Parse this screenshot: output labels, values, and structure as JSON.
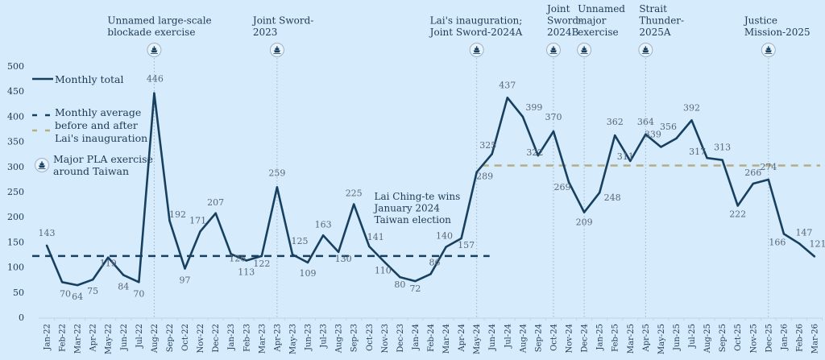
{
  "chart_data": {
    "type": "line",
    "title": "",
    "xlabel": "",
    "ylabel": "",
    "ylim": [
      0,
      500
    ],
    "yticks": [
      0,
      50,
      100,
      150,
      200,
      250,
      300,
      350,
      400,
      450,
      500
    ],
    "grid": false,
    "legend_position": "top-left",
    "colors": {
      "background": "#d6ebfb",
      "line": "#173f5f",
      "avg_before": "#173f5f",
      "avg_after": "#b5ad85",
      "label": "#5a6878",
      "text": "#1f3a55",
      "exercise_line": "#9fb3c8"
    },
    "categories": [
      "Jan-22",
      "Feb-22",
      "Mar-22",
      "Apr-22",
      "May-22",
      "Jun-22",
      "Jul-22",
      "Aug-22",
      "Sep-22",
      "Oct-22",
      "Nov-22",
      "Dec-22",
      "Jan-23",
      "Feb-23",
      "Mar-23",
      "Apr-23",
      "May-23",
      "Jun-23",
      "Jul-23",
      "Aug-23",
      "Sep-23",
      "Oct-23",
      "Nov-23",
      "Dec-23",
      "Jan-24",
      "Feb-24",
      "Mar-24",
      "Apr-24",
      "May-24",
      "Jun-24",
      "Jul-24",
      "Aug-24",
      "Sep-24",
      "Oct-24",
      "Nov-24",
      "Dec-24",
      "Jan-25",
      "Feb-25",
      "Mar-25",
      "Apr-25",
      "May-25",
      "Jun-25",
      "Jul-25",
      "Aug-25",
      "Sep-25",
      "Oct-25",
      "Nov-25",
      "Dec-25",
      "Jan-26",
      "Feb-26",
      "Mar-26"
    ],
    "series": [
      {
        "name": "Monthly total",
        "values": [
          143,
          70,
          64,
          75,
          119,
          84,
          70,
          446,
          192,
          97,
          171,
          207,
          126,
          113,
          122,
          259,
          125,
          109,
          163,
          130,
          225,
          141,
          110,
          80,
          72,
          86,
          140,
          157,
          289,
          325,
          437,
          399,
          322,
          370,
          269,
          209,
          248,
          362,
          311,
          364,
          339,
          356,
          392,
          317,
          313,
          222,
          266,
          274,
          166,
          147,
          121
        ],
        "labels": [
          "143",
          "70",
          "64",
          "75",
          "119",
          "84",
          "70",
          "446",
          "192",
          "97",
          "171",
          "207",
          "126",
          "113",
          "122",
          "259",
          "125",
          "109",
          "163",
          "130",
          "225",
          "141",
          "110",
          "80",
          "72",
          "86",
          "140",
          "157",
          "289",
          "325",
          "437",
          "399",
          "322",
          "370",
          "269",
          "209",
          "248",
          "362",
          "311",
          "364",
          "339",
          "356",
          "392",
          "317",
          "313",
          "222",
          "266",
          "274",
          "166",
          "147",
          "121"
        ]
      }
    ],
    "averages": [
      {
        "name": "Monthly average before Lai's inauguration",
        "value": 122,
        "from": "Jan-22",
        "to": "May-24"
      },
      {
        "name": "Monthly average after Lai's inauguration",
        "value": 302,
        "from": "May-24",
        "to": "Mar-26"
      }
    ],
    "exercises": [
      {
        "month": "Aug-22",
        "label": [
          "Unnamed large-scale",
          "blockade exercise"
        ]
      },
      {
        "month": "Apr-23",
        "label": [
          "Joint Sword-",
          "2023"
        ]
      },
      {
        "month": "May-24",
        "label": [
          "Lai's inauguration;",
          "Joint Sword-2024A"
        ]
      },
      {
        "month": "Oct-24",
        "label": [
          "Joint",
          "Sword-",
          "2024B"
        ]
      },
      {
        "month": "Dec-24",
        "label": [
          "Unnamed",
          "major",
          "exercise"
        ]
      },
      {
        "month": "Apr-25",
        "label": [
          "Strait",
          "Thunder-",
          "2025A"
        ]
      },
      {
        "month": "Dec-25",
        "label": [
          "Justice",
          "Mission-2025"
        ]
      }
    ],
    "annotations": [
      {
        "month": "Feb-24",
        "value": 180,
        "text": [
          "Lai Ching-te wins",
          "January 2024",
          "Taiwan election"
        ]
      }
    ],
    "legend": {
      "monthly_total": "Monthly total",
      "monthly_average": [
        "Monthly average",
        "before and after",
        "Lai's inauguration"
      ],
      "exercise": [
        "Major PLA exercise",
        "around Taiwan"
      ]
    }
  }
}
